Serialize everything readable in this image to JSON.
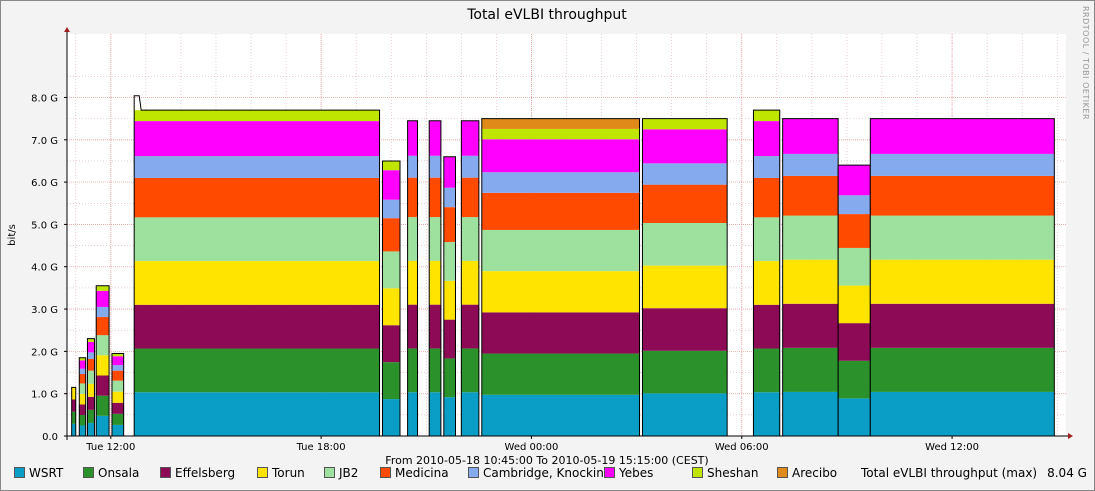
{
  "chart_data": {
    "type": "area",
    "title": "Total eVLBI throughput",
    "ylabel": "bit/s",
    "xlabel": "From 2010-05-18 10:45:00 To 2010-05-19 15:15:00 (CEST)",
    "watermark": "RRDTOOL / TOBI OETIKER",
    "ylim": [
      0,
      9.5
    ],
    "y_unit": "Gbit/s",
    "y_ticks": [
      "0.0",
      "1.0 G",
      "2.0 G",
      "3.0 G",
      "4.0 G",
      "5.0 G",
      "6.0 G",
      "7.0 G",
      "8.0 G"
    ],
    "x_time_range": [
      "2010-05-18 10:45",
      "2010-05-19 15:15"
    ],
    "x_ticks": [
      {
        "label": "Tue 12:00",
        "time": "2010-05-18 12:00"
      },
      {
        "label": "Tue 18:00",
        "time": "2010-05-18 18:00"
      },
      {
        "label": "Wed 00:00",
        "time": "2010-05-19 00:00"
      },
      {
        "label": "Wed 06:00",
        "time": "2010-05-19 06:00"
      },
      {
        "label": "Wed 12:00",
        "time": "2010-05-19 12:00"
      }
    ],
    "grid": true,
    "legend_position": "bottom",
    "stack_order": [
      "WSRT",
      "Onsala",
      "Effelsberg",
      "Torun",
      "JB2",
      "Medicina",
      "Cambridge, Knockin",
      "Yebes",
      "Sheshan",
      "Arecibo"
    ],
    "series": [
      {
        "name": "WSRT",
        "color": "#0a9ec7"
      },
      {
        "name": "Onsala",
        "color": "#2b922b"
      },
      {
        "name": "Effelsberg",
        "color": "#8c0a56"
      },
      {
        "name": "Torun",
        "color": "#ffe400"
      },
      {
        "name": "JB2",
        "color": "#9ee09e"
      },
      {
        "name": "Medicina",
        "color": "#ff4a00"
      },
      {
        "name": "Cambridge, Knockin",
        "color": "#86aaee"
      },
      {
        "name": "Yebes",
        "color": "#ff00ff"
      },
      {
        "name": "Sheshan",
        "color": "#bfe600"
      },
      {
        "name": "Arecibo",
        "color": "#e08a1a"
      }
    ],
    "segments": [
      {
        "from": "2010-05-18 10:53",
        "to": "2010-05-18 11:00",
        "total": 1.15,
        "stations": [
          "WSRT",
          "Onsala",
          "Effelsberg",
          "Torun"
        ]
      },
      {
        "from": "2010-05-18 11:06",
        "to": "2010-05-18 11:17",
        "total": 1.85,
        "stations": [
          "WSRT",
          "Onsala",
          "Effelsberg",
          "Torun",
          "JB2",
          "Medicina",
          "Cambridge, Knockin",
          "Yebes",
          "Sheshan"
        ]
      },
      {
        "from": "2010-05-18 11:20",
        "to": "2010-05-18 11:32",
        "total": 2.3,
        "stations": [
          "WSRT",
          "Onsala",
          "Effelsberg",
          "Torun",
          "JB2",
          "Medicina",
          "Cambridge, Knockin",
          "Yebes",
          "Sheshan"
        ]
      },
      {
        "from": "2010-05-18 11:35",
        "to": "2010-05-18 11:57",
        "total": 3.55,
        "stations": [
          "WSRT",
          "Onsala",
          "Effelsberg",
          "Torun",
          "JB2",
          "Medicina",
          "Cambridge, Knockin",
          "Yebes",
          "Sheshan"
        ]
      },
      {
        "from": "2010-05-18 12:02",
        "to": "2010-05-18 12:22",
        "total": 1.95,
        "stations": [
          "WSRT",
          "Onsala",
          "Effelsberg",
          "Torun",
          "JB2",
          "Medicina",
          "Cambridge, Knockin",
          "Yebes",
          "Sheshan"
        ]
      },
      {
        "from": "2010-05-18 12:40",
        "to": "2010-05-18 19:40",
        "total": 7.7,
        "stations": [
          "WSRT",
          "Onsala",
          "Effelsberg",
          "Torun",
          "JB2",
          "Medicina",
          "Cambridge, Knockin",
          "Yebes",
          "Sheshan"
        ],
        "peak_start": 8.04
      },
      {
        "from": "2010-05-18 19:45",
        "to": "2010-05-18 20:15",
        "total": 6.5,
        "stations": [
          "WSRT",
          "Onsala",
          "Effelsberg",
          "Torun",
          "JB2",
          "Medicina",
          "Cambridge, Knockin",
          "Yebes",
          "Sheshan"
        ]
      },
      {
        "from": "2010-05-18 20:28",
        "to": "2010-05-18 20:45",
        "total": 7.45,
        "stations": [
          "WSRT",
          "Onsala",
          "Effelsberg",
          "Torun",
          "JB2",
          "Medicina",
          "Cambridge, Knockin",
          "Yebes"
        ]
      },
      {
        "from": "2010-05-18 21:05",
        "to": "2010-05-18 21:25",
        "total": 7.45,
        "stations": [
          "WSRT",
          "Onsala",
          "Effelsberg",
          "Torun",
          "JB2",
          "Medicina",
          "Cambridge, Knockin",
          "Yebes"
        ]
      },
      {
        "from": "2010-05-18 21:30",
        "to": "2010-05-18 21:50",
        "total": 6.6,
        "stations": [
          "WSRT",
          "Onsala",
          "Effelsberg",
          "Torun",
          "JB2",
          "Medicina",
          "Cambridge, Knockin",
          "Yebes"
        ]
      },
      {
        "from": "2010-05-18 22:00",
        "to": "2010-05-18 22:30",
        "total": 7.45,
        "stations": [
          "WSRT",
          "Onsala",
          "Effelsberg",
          "Torun",
          "JB2",
          "Medicina",
          "Cambridge, Knockin",
          "Yebes"
        ]
      },
      {
        "from": "2010-05-18 22:35",
        "to": "2010-05-19 03:05",
        "total": 7.5,
        "stations": [
          "WSRT",
          "Onsala",
          "Effelsberg",
          "Torun",
          "JB2",
          "Medicina",
          "Cambridge, Knockin",
          "Yebes",
          "Sheshan",
          "Arecibo"
        ]
      },
      {
        "from": "2010-05-19 03:10",
        "to": "2010-05-19 05:35",
        "total": 7.5,
        "stations": [
          "WSRT",
          "Onsala",
          "Effelsberg",
          "Torun",
          "JB2",
          "Medicina",
          "Cambridge, Knockin",
          "Yebes",
          "Sheshan"
        ]
      },
      {
        "from": "2010-05-19 06:20",
        "to": "2010-05-19 07:05",
        "total": 7.7,
        "stations": [
          "WSRT",
          "Onsala",
          "Effelsberg",
          "Torun",
          "JB2",
          "Medicina",
          "Cambridge, Knockin",
          "Yebes",
          "Sheshan"
        ]
      },
      {
        "from": "2010-05-19 07:10",
        "to": "2010-05-19 08:45",
        "total": 7.5,
        "stations": [
          "WSRT",
          "Onsala",
          "Effelsberg",
          "Torun",
          "JB2",
          "Medicina",
          "Cambridge, Knockin",
          "Yebes"
        ]
      },
      {
        "from": "2010-05-19 08:45",
        "to": "2010-05-19 09:40",
        "total": 6.4,
        "stations": [
          "WSRT",
          "Onsala",
          "Effelsberg",
          "Torun",
          "JB2",
          "Medicina",
          "Cambridge, Knockin",
          "Yebes"
        ]
      },
      {
        "from": "2010-05-19 09:40",
        "to": "2010-05-19 14:55",
        "total": 7.5,
        "stations": [
          "WSRT",
          "Onsala",
          "Effelsberg",
          "Torun",
          "JB2",
          "Medicina",
          "Cambridge, Knockin",
          "Yebes"
        ]
      }
    ]
  },
  "legend": {
    "items": [
      {
        "label": "WSRT",
        "color": "#0a9ec7"
      },
      {
        "label": "Onsala",
        "color": "#2b922b"
      },
      {
        "label": "Effelsberg",
        "color": "#8c0a56"
      },
      {
        "label": "Torun",
        "color": "#ffe400"
      },
      {
        "label": "JB2",
        "color": "#9ee09e"
      },
      {
        "label": "Medicina",
        "color": "#ff4a00"
      },
      {
        "label": "Cambridge, Knockin",
        "color": "#86aaee"
      },
      {
        "label": "Yebes",
        "color": "#ff00ff"
      },
      {
        "label": "Sheshan",
        "color": "#bfe600"
      },
      {
        "label": "Arecibo",
        "color": "#e08a1a"
      }
    ],
    "total_label": "Total eVLBI throughput (max)",
    "total_value": "8.04 G"
  }
}
